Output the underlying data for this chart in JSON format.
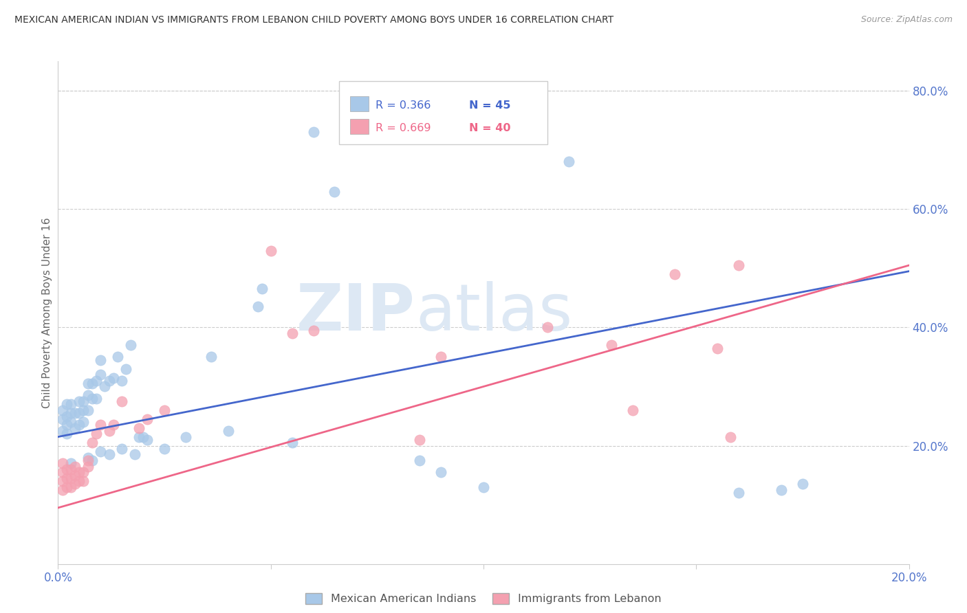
{
  "title": "MEXICAN AMERICAN INDIAN VS IMMIGRANTS FROM LEBANON CHILD POVERTY AMONG BOYS UNDER 16 CORRELATION CHART",
  "source": "Source: ZipAtlas.com",
  "ylabel": "Child Poverty Among Boys Under 16",
  "right_yticks": [
    "20.0%",
    "40.0%",
    "60.0%",
    "80.0%"
  ],
  "right_ytick_vals": [
    0.2,
    0.4,
    0.6,
    0.8
  ],
  "legend_blue_R": "R = 0.366",
  "legend_blue_N": "N = 45",
  "legend_pink_R": "R = 0.669",
  "legend_pink_N": "N = 40",
  "legend1_label": "Mexican American Indians",
  "legend2_label": "Immigrants from Lebanon",
  "blue_color": "#a8c8e8",
  "pink_color": "#f4a0b0",
  "blue_line_color": "#4466cc",
  "pink_line_color": "#ee6688",
  "right_axis_color": "#5577cc",
  "watermark_color": "#dde8f4",
  "xmin": 0.0,
  "xmax": 0.2,
  "ymin": 0.0,
  "ymax": 0.85,
  "blue_line_x0": 0.0,
  "blue_line_y0": 0.215,
  "blue_line_x1": 0.2,
  "blue_line_y1": 0.495,
  "pink_line_x0": 0.0,
  "pink_line_y0": 0.095,
  "pink_line_x1": 0.2,
  "pink_line_y1": 0.505,
  "blue_x": [
    0.001,
    0.001,
    0.001,
    0.002,
    0.002,
    0.002,
    0.002,
    0.003,
    0.003,
    0.003,
    0.004,
    0.004,
    0.005,
    0.005,
    0.005,
    0.006,
    0.006,
    0.006,
    0.007,
    0.007,
    0.007,
    0.008,
    0.008,
    0.009,
    0.009,
    0.01,
    0.01,
    0.011,
    0.012,
    0.013,
    0.014,
    0.015,
    0.016,
    0.017,
    0.019,
    0.021,
    0.025,
    0.03,
    0.036,
    0.04,
    0.047,
    0.048,
    0.06,
    0.065,
    0.12
  ],
  "blue_y": [
    0.225,
    0.245,
    0.26,
    0.22,
    0.235,
    0.25,
    0.27,
    0.24,
    0.255,
    0.27,
    0.23,
    0.255,
    0.235,
    0.255,
    0.275,
    0.24,
    0.26,
    0.275,
    0.26,
    0.285,
    0.305,
    0.28,
    0.305,
    0.28,
    0.31,
    0.32,
    0.345,
    0.3,
    0.31,
    0.315,
    0.35,
    0.31,
    0.33,
    0.37,
    0.215,
    0.21,
    0.195,
    0.215,
    0.35,
    0.225,
    0.435,
    0.465,
    0.73,
    0.63,
    0.68
  ],
  "blue_x2": [
    0.003,
    0.007,
    0.008,
    0.01,
    0.012,
    0.015,
    0.018,
    0.02,
    0.055,
    0.085,
    0.09,
    0.1,
    0.16,
    0.17,
    0.175
  ],
  "blue_y2": [
    0.17,
    0.18,
    0.175,
    0.19,
    0.185,
    0.195,
    0.185,
    0.215,
    0.205,
    0.175,
    0.155,
    0.13,
    0.12,
    0.125,
    0.135
  ],
  "pink_x": [
    0.001,
    0.001,
    0.001,
    0.001,
    0.002,
    0.002,
    0.002,
    0.003,
    0.003,
    0.003,
    0.004,
    0.004,
    0.004,
    0.005,
    0.005,
    0.006,
    0.006,
    0.007,
    0.007,
    0.008,
    0.009,
    0.01,
    0.012,
    0.013,
    0.015,
    0.019,
    0.021,
    0.025,
    0.05,
    0.055,
    0.06,
    0.085,
    0.09,
    0.115,
    0.13,
    0.135,
    0.145,
    0.155,
    0.158,
    0.16
  ],
  "pink_y": [
    0.125,
    0.14,
    0.155,
    0.17,
    0.13,
    0.145,
    0.16,
    0.13,
    0.145,
    0.16,
    0.135,
    0.15,
    0.165,
    0.14,
    0.155,
    0.14,
    0.155,
    0.165,
    0.175,
    0.205,
    0.22,
    0.235,
    0.225,
    0.235,
    0.275,
    0.23,
    0.245,
    0.26,
    0.53,
    0.39,
    0.395,
    0.21,
    0.35,
    0.4,
    0.37,
    0.26,
    0.49,
    0.365,
    0.215,
    0.505
  ]
}
